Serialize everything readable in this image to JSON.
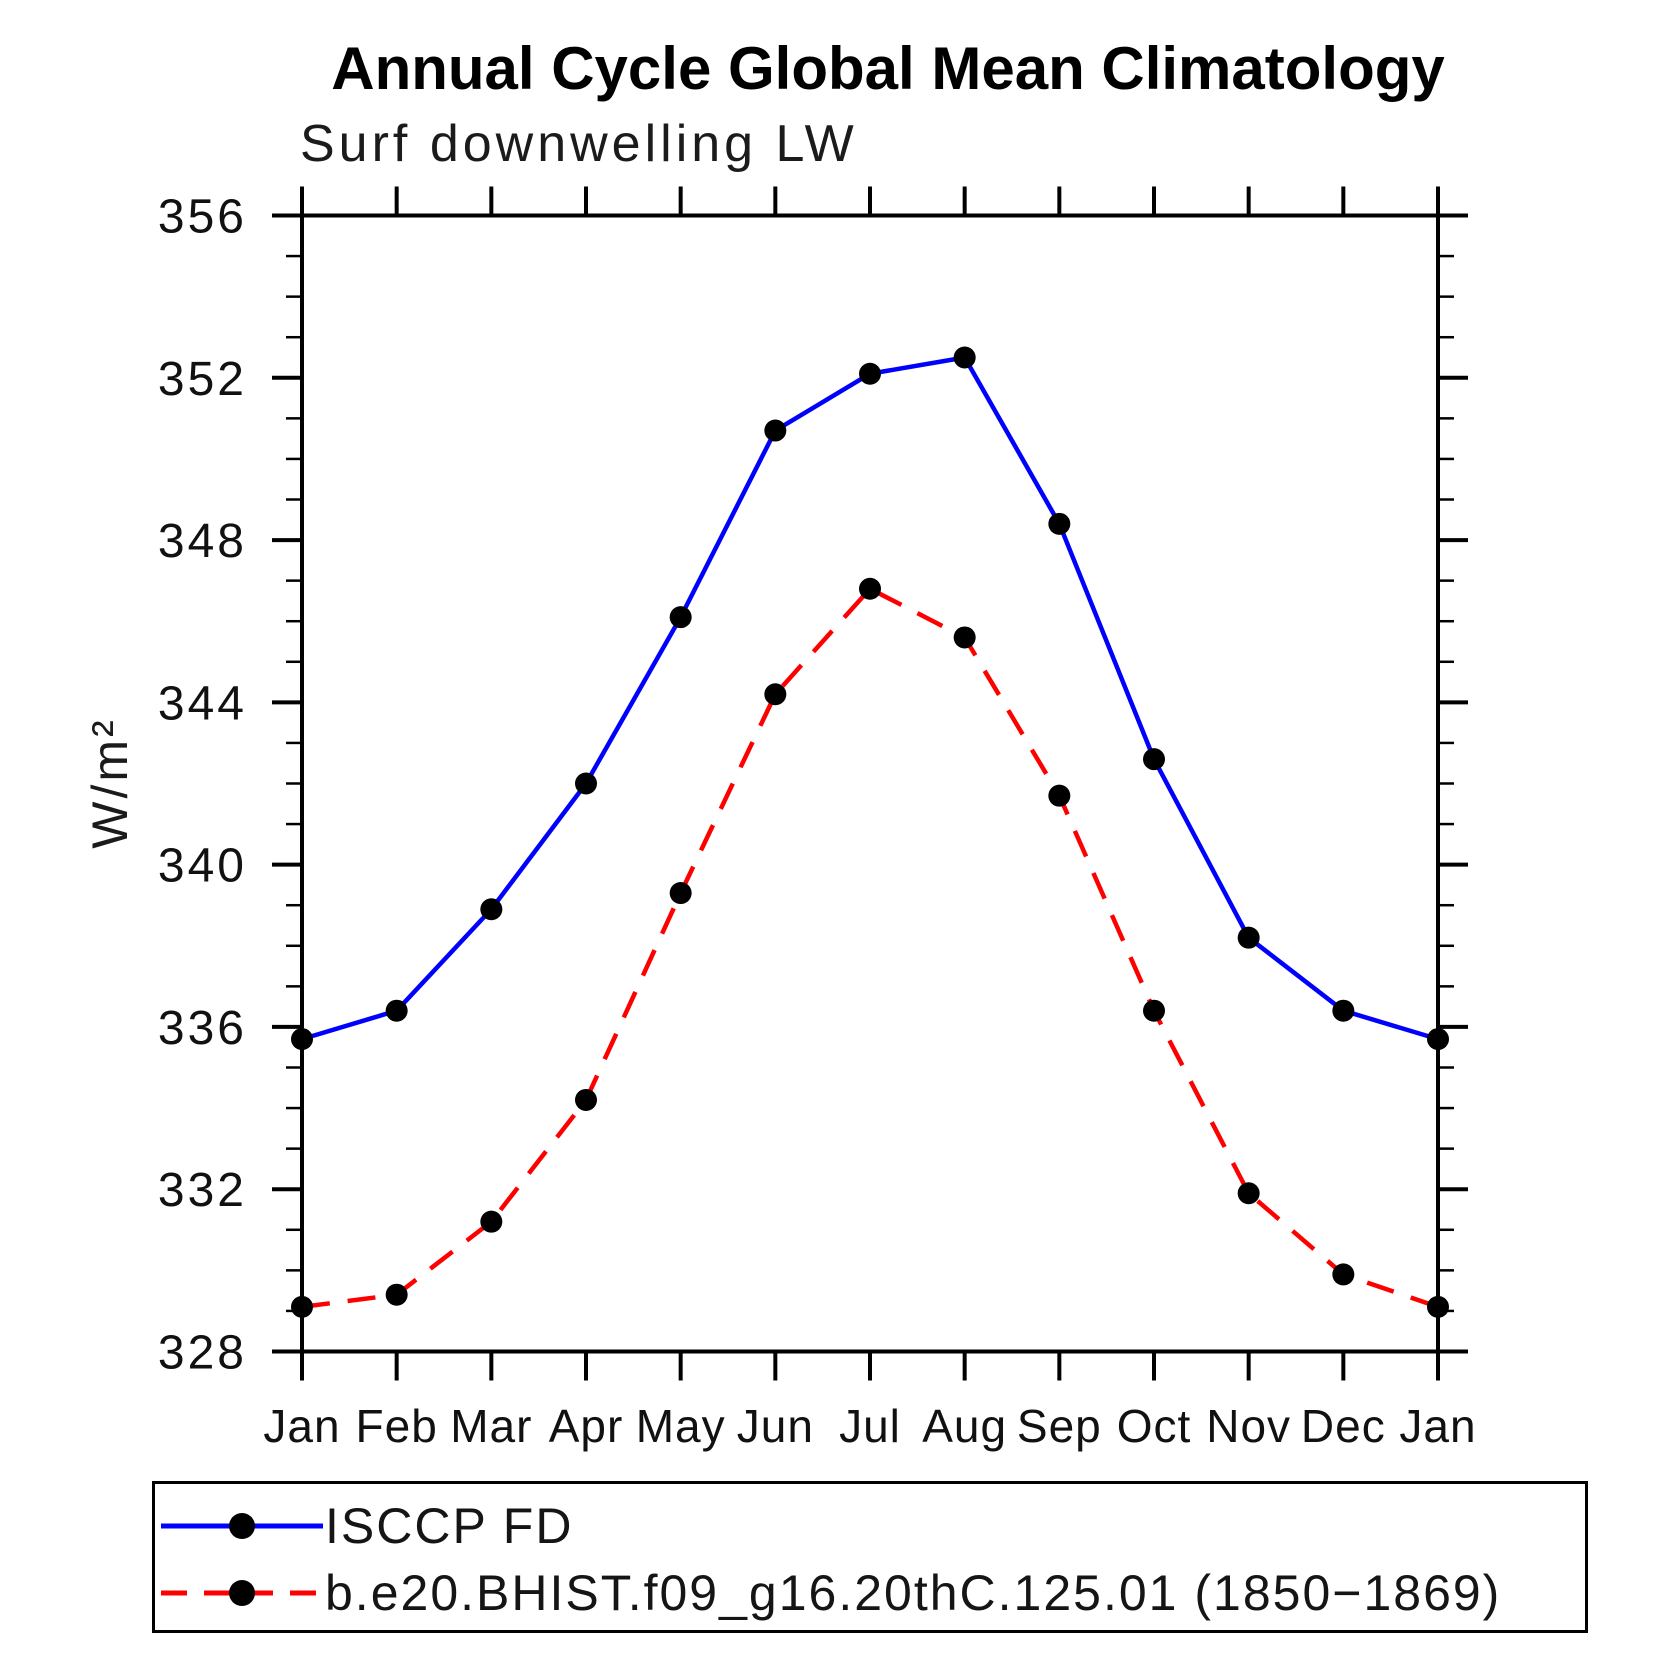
{
  "chart_data": {
    "type": "line",
    "title": "Annual Cycle Global Mean Climatology",
    "subtitle": "Surf downwelling LW",
    "ylabel": "W/m²",
    "xlabel": "",
    "ylim": [
      328,
      356
    ],
    "ytick_major_step": 4,
    "ytick_minor_step": 1,
    "ytick_labels": [
      328,
      332,
      336,
      340,
      344,
      348,
      352,
      356
    ],
    "grid": false,
    "legend_position": "bottom-left-box",
    "categories": [
      "Jan",
      "Feb",
      "Mar",
      "Apr",
      "May",
      "Jun",
      "Jul",
      "Aug",
      "Sep",
      "Oct",
      "Nov",
      "Dec",
      "Jan"
    ],
    "series": [
      {
        "name": "ISCCP FD",
        "color": "#0000ff",
        "line_style": "solid",
        "marker": "filled-circle",
        "marker_color": "#000000",
        "values": [
          335.7,
          336.4,
          338.9,
          342.0,
          346.1,
          350.7,
          352.1,
          352.5,
          348.4,
          342.6,
          338.2,
          336.4,
          335.7
        ]
      },
      {
        "name": "b.e20.BHIST.f09_g16.20thC.125.01 (1850−1869)",
        "color": "#ff0000",
        "line_style": "dashed",
        "marker": "filled-circle",
        "marker_color": "#000000",
        "values": [
          329.1,
          329.4,
          331.2,
          334.2,
          339.3,
          344.2,
          346.8,
          345.6,
          341.7,
          336.4,
          331.9,
          329.9,
          329.1
        ]
      }
    ],
    "axis_color": "#000000"
  }
}
